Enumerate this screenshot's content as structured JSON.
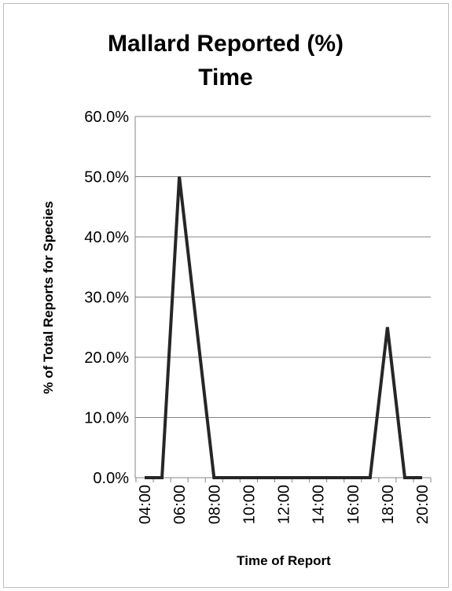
{
  "chart_data": {
    "type": "line",
    "title_lines": [
      "Mallard Reported (%)",
      "Time"
    ],
    "xlabel": "Time of Report",
    "ylabel": "% of Total Reports for Species",
    "x": [
      "04:00",
      "05:00",
      "06:00",
      "07:00",
      "08:00",
      "09:00",
      "10:00",
      "11:00",
      "12:00",
      "13:00",
      "14:00",
      "15:00",
      "16:00",
      "17:00",
      "18:00",
      "19:00",
      "20:00"
    ],
    "x_tick_labels": [
      "04:00",
      "06:00",
      "08:00",
      "10:00",
      "12:00",
      "14:00",
      "16:00",
      "18:00",
      "20:00"
    ],
    "series": [
      {
        "values": [
          0.0,
          0.0,
          50.0,
          25.0,
          0.0,
          0.0,
          0.0,
          0.0,
          0.0,
          0.0,
          0.0,
          0.0,
          0.0,
          0.0,
          25.0,
          0.0,
          0.0
        ],
        "color": "#262626"
      }
    ],
    "ylim": [
      0,
      60
    ],
    "y_ticks": [
      0,
      10,
      20,
      30,
      40,
      50,
      60
    ],
    "y_tick_labels": [
      "0.0%",
      "10.0%",
      "20.0%",
      "30.0%",
      "40.0%",
      "50.0%",
      "60.0%"
    ],
    "grid": true,
    "legend": false,
    "colors": {
      "gridline": "#868686",
      "axis": "#868686",
      "line": "#262626"
    }
  }
}
